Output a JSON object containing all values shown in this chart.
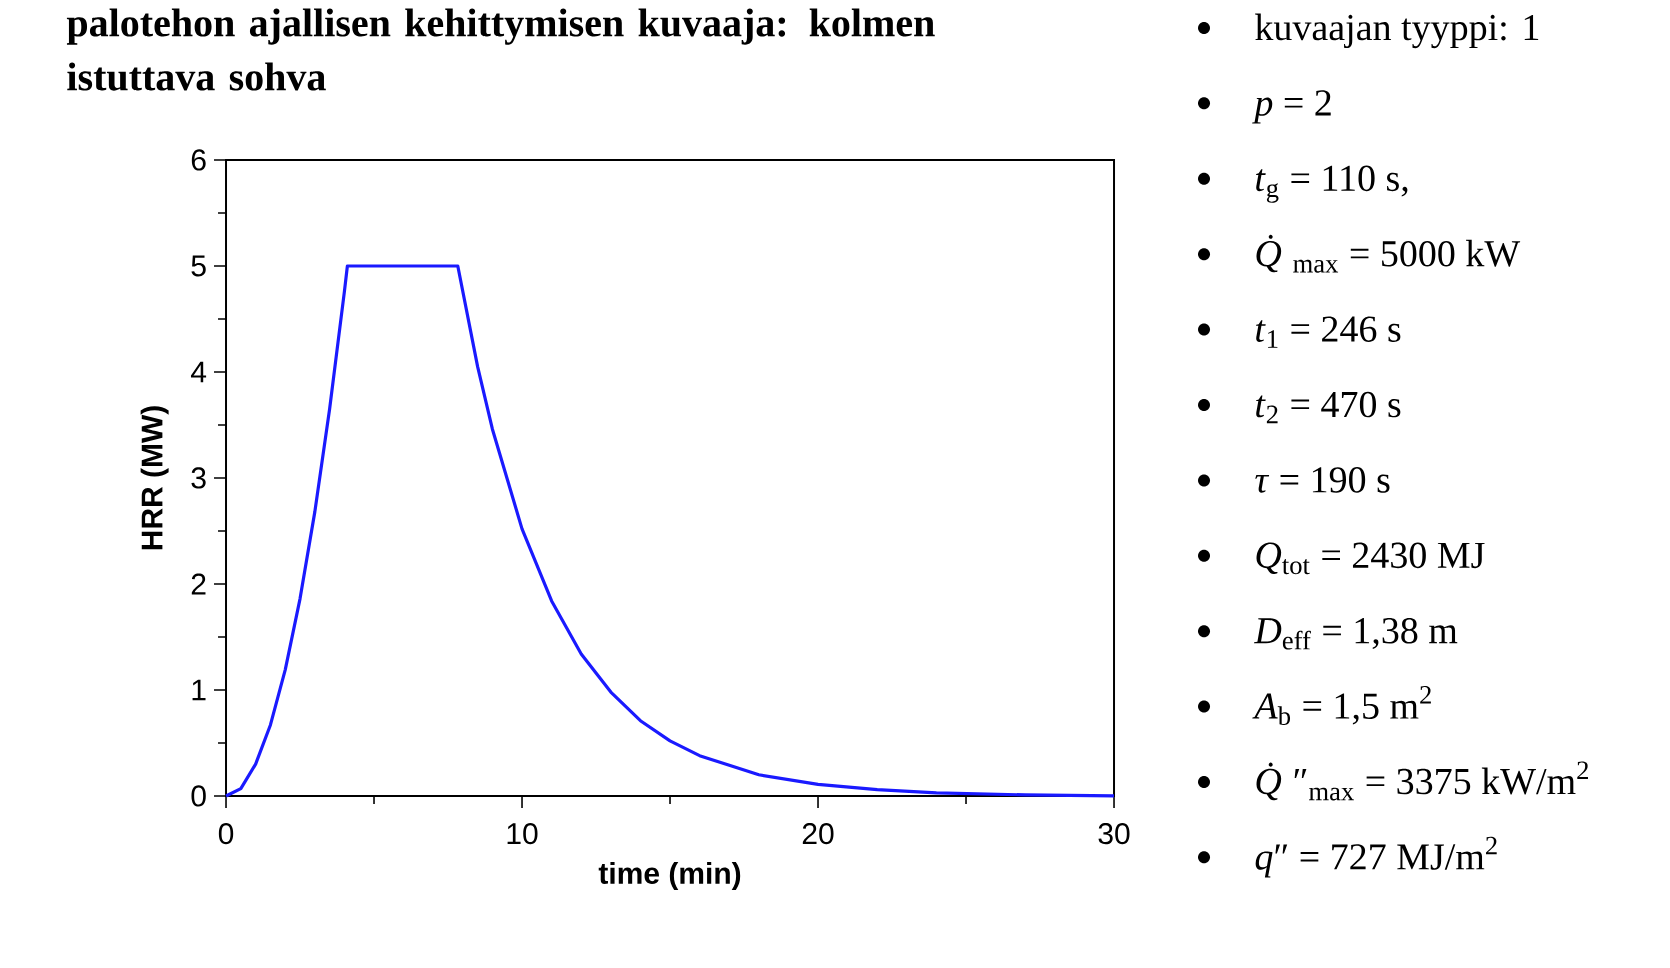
{
  "chart_data": {
    "type": "line",
    "title": "palotehon ajallisen kehittymisen kuvaaja: kolmen istuttava sohva",
    "xlabel": "time (min)",
    "ylabel": "HRR (MW)",
    "x": [
      0,
      0.5,
      1,
      1.5,
      2,
      2.5,
      3,
      3.5,
      4,
      4.1,
      7.83,
      8.5,
      9,
      10,
      11,
      12,
      13,
      14,
      15,
      16,
      18,
      20,
      22,
      24,
      27,
      30
    ],
    "values": [
      0,
      0.07,
      0.3,
      0.67,
      1.19,
      1.86,
      2.68,
      3.65,
      4.76,
      5.0,
      5.0,
      4.05,
      3.46,
      2.52,
      1.84,
      1.34,
      0.98,
      0.71,
      0.52,
      0.38,
      0.2,
      0.11,
      0.06,
      0.03,
      0.01,
      0
    ],
    "color": "#1a1aff",
    "xlim": [
      0,
      30
    ],
    "ylim": [
      0,
      6
    ],
    "xticks": [
      0,
      10,
      20,
      30
    ],
    "yticks": [
      0,
      1,
      2,
      3,
      4,
      5,
      6
    ],
    "annotations": [
      "kuvaajan tyyppi: 1",
      "*p* = 2",
      "*t*$_{g}$ = 110 s,",
      "*Q̇*$_{max}$ = 5000 kW",
      "*t*$_{1}$ = 246 s",
      "*t*$_{2}$ = 470 s",
      "*τ* = 190 s",
      "*Q*$_{tot}$ = 2430 MJ",
      "*D*$_{eff}$ = 1,38 m",
      "*A*$_{b}$ = 1,5 m$^{2}$",
      "*Q̇*″$_{max}$ = 3375 kW/m$^{2}$",
      "*q*″ = 727 MJ/m$^{2}$"
    ]
  }
}
